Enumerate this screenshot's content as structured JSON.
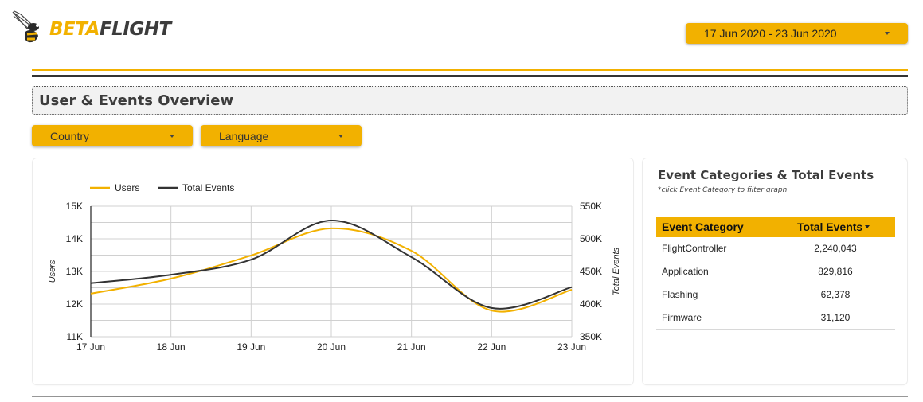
{
  "header": {
    "logo": {
      "part1": "BETA",
      "part2": "FLIGHT",
      "icon": "bee-icon"
    },
    "date_range": "17 Jun 2020 - 23 Jun 2020"
  },
  "section": {
    "title": "User & Events Overview"
  },
  "filters": [
    {
      "label": "Country"
    },
    {
      "label": "Language"
    }
  ],
  "colors": {
    "accent": "#f2b100",
    "dark": "#333333",
    "users_line": "#f2b100",
    "events_line": "#333333",
    "grid": "#cccccc"
  },
  "chart_data": {
    "type": "line",
    "title": "",
    "categories": [
      "17 Jun",
      "18 Jun",
      "19 Jun",
      "20 Jun",
      "21 Jun",
      "22 Jun",
      "23 Jun"
    ],
    "series": [
      {
        "name": "Users",
        "axis": "left",
        "color": "#f2b100",
        "values": [
          12320,
          12780,
          13490,
          14320,
          13630,
          11800,
          12440
        ]
      },
      {
        "name": "Total Events",
        "axis": "right",
        "color": "#333333",
        "values": [
          432000,
          445000,
          468000,
          528000,
          472000,
          394000,
          426000
        ]
      }
    ],
    "xlabel": "",
    "ylabel": "Users",
    "y2label": "Total Events",
    "ylim": [
      11000,
      15000
    ],
    "y2lim": [
      350000,
      550000
    ],
    "yticks": [
      "11K",
      "12K",
      "13K",
      "14K",
      "15K"
    ],
    "y2ticks": [
      "350K",
      "400K",
      "450K",
      "500K",
      "550K"
    ],
    "grid": true,
    "legend_position": "top-left"
  },
  "table": {
    "title": "Event Categories & Total Events",
    "subtitle": "*click Event Category to filter graph",
    "columns": [
      "Event Category",
      "Total Events"
    ],
    "sort_indicator": "descending",
    "rows": [
      {
        "category": "FlightController",
        "total": "2,240,043"
      },
      {
        "category": "Application",
        "total": "829,816"
      },
      {
        "category": "Flashing",
        "total": "62,378"
      },
      {
        "category": "Firmware",
        "total": "31,120"
      }
    ]
  }
}
